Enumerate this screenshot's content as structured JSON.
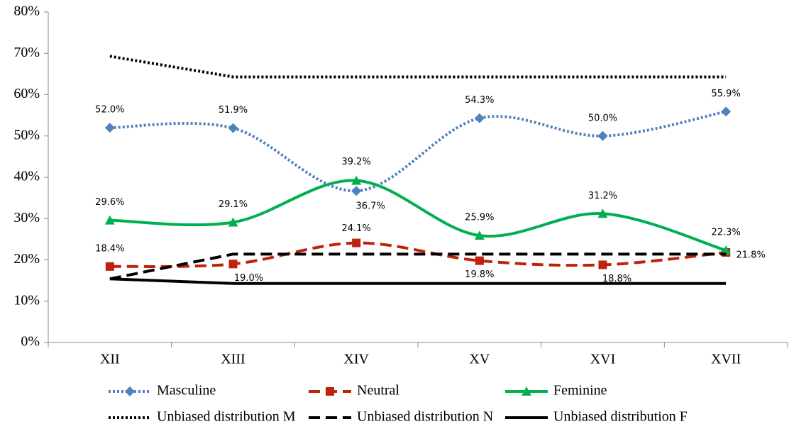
{
  "chart_data": {
    "type": "line",
    "categories": [
      "XII",
      "XIII",
      "XIV",
      "XV",
      "XVI",
      "XVII"
    ],
    "ylim": [
      0,
      80
    ],
    "yticks": [
      {
        "value": 0,
        "label": "0%"
      },
      {
        "value": 10,
        "label": "10%"
      },
      {
        "value": 20,
        "label": "20%"
      },
      {
        "value": 30,
        "label": "30%"
      },
      {
        "value": 40,
        "label": "40%"
      },
      {
        "value": 50,
        "label": "50%"
      },
      {
        "value": 60,
        "label": "60%"
      },
      {
        "value": 70,
        "label": "70%"
      },
      {
        "value": 80,
        "label": "80%"
      }
    ],
    "series": [
      {
        "name": "Masculine",
        "color": "#4f81bd",
        "linestyle": "dotted",
        "marker": "diamond",
        "smooth": true,
        "values": [
          52.0,
          51.9,
          36.7,
          54.3,
          50.0,
          55.9
        ],
        "value_labels": [
          "52.0%",
          "51.9%",
          "36.7%",
          "54.3%",
          "50.0%",
          "55.9%"
        ]
      },
      {
        "name": "Neutral",
        "color": "#c0210f",
        "linestyle": "dashed",
        "marker": "square",
        "smooth": true,
        "values": [
          18.4,
          19.0,
          24.1,
          19.8,
          18.8,
          21.8
        ],
        "value_labels": [
          "18.4%",
          "19.0%",
          "24.1%",
          "19.8%",
          "18.8%",
          "21.8%"
        ]
      },
      {
        "name": "Feminine",
        "color": "#00b050",
        "linestyle": "solid",
        "marker": "triangle",
        "smooth": true,
        "values": [
          29.6,
          29.1,
          39.2,
          25.9,
          31.2,
          22.3
        ],
        "value_labels": [
          "29.6%",
          "29.1%",
          "39.2%",
          "25.9%",
          "31.2%",
          "22.3%"
        ]
      },
      {
        "name": "Unbiased distribution M",
        "color": "#000000",
        "linestyle": "dotted",
        "smooth": false,
        "values": [
          69.3,
          64.3,
          64.3,
          64.3,
          64.3,
          64.3
        ]
      },
      {
        "name": "Unbiased distribution N",
        "color": "#000000",
        "linestyle": "dashed",
        "smooth": false,
        "values": [
          15.4,
          21.4,
          21.4,
          21.4,
          21.4,
          21.4
        ]
      },
      {
        "name": "Unbiased distribution F",
        "color": "#000000",
        "linestyle": "solid",
        "smooth": false,
        "values": [
          15.4,
          14.3,
          14.3,
          14.3,
          14.3,
          14.3
        ]
      }
    ]
  }
}
